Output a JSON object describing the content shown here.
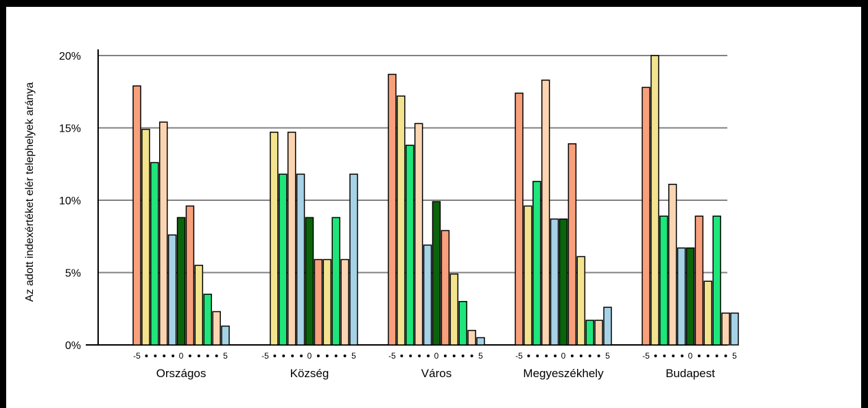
{
  "chart_data": {
    "type": "bar",
    "ylabel": "Az adott indexértéket elér   telephelyek aránya",
    "ylim": [
      0,
      20
    ],
    "yticks": [
      "0%",
      "5%",
      "10%",
      "15%",
      "20%"
    ],
    "grid": true,
    "x_tick_labels": [
      "-5",
      "0",
      "5"
    ],
    "groups": [
      {
        "name": "Országos",
        "values": [
          17.9,
          14.9,
          12.6,
          15.4,
          7.6,
          8.8,
          9.6,
          5.5,
          3.5,
          2.3,
          1.3
        ]
      },
      {
        "name": "Község",
        "values": [
          0,
          14.7,
          11.8,
          14.7,
          11.8,
          8.8,
          5.9,
          5.9,
          8.8,
          5.9,
          11.8
        ]
      },
      {
        "name": "Város",
        "values": [
          18.7,
          17.2,
          13.8,
          15.3,
          6.9,
          9.9,
          7.9,
          4.9,
          3.0,
          1.0,
          0.5
        ]
      },
      {
        "name": "Megyeszékhely",
        "values": [
          17.4,
          9.6,
          11.3,
          18.3,
          8.7,
          8.7,
          13.9,
          6.1,
          1.7,
          1.7,
          2.6
        ]
      },
      {
        "name": "Budapest",
        "values": [
          17.8,
          20.0,
          8.9,
          11.1,
          6.7,
          6.7,
          8.9,
          4.4,
          8.9,
          2.2,
          2.2
        ]
      }
    ],
    "bar_colors": [
      "#f8a07c",
      "#f3e38e",
      "#1ee67a",
      "#fbd5b2",
      "#a6d2e6",
      "#0b640b",
      "#f8a07c",
      "#f3e38e",
      "#1ee67a",
      "#fbd5b2",
      "#a6d2e6"
    ]
  }
}
